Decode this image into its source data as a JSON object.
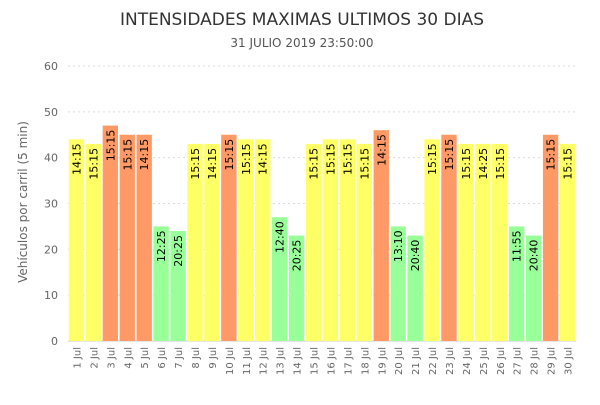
{
  "chart_data": {
    "type": "bar",
    "title": "INTENSIDADES MAXIMAS ULTIMOS 30 DIAS",
    "subtitle": "31 JULIO 2019 23:50:00",
    "ylabel": "Vehículos por carril (5 min)",
    "ylim": [
      0,
      60
    ],
    "yticks": [
      0,
      10,
      20,
      30,
      40,
      50,
      60
    ],
    "grid": true,
    "categories": [
      "1 Jul",
      "2 Jul",
      "3 Jul",
      "4 Jul",
      "5 Jul",
      "6 Jul",
      "7 Jul",
      "8 Jul",
      "9 Jul",
      "10 Jul",
      "11 Jul",
      "12 Jul",
      "13 Jul",
      "14 Jul",
      "15 Jul",
      "16 Jul",
      "17 Jul",
      "18 Jul",
      "19 Jul",
      "20 Jul",
      "21 Jul",
      "22 Jul",
      "23 Jul",
      "24 Jul",
      "25 Jul",
      "26 Jul",
      "27 Jul",
      "28 Jul",
      "29 Jul",
      "30 Jul"
    ],
    "values": [
      44,
      43,
      47,
      45,
      45,
      25,
      24,
      43,
      43,
      45,
      44,
      44,
      27,
      23,
      43,
      44,
      44,
      43,
      46,
      25,
      23,
      44,
      45,
      43,
      43,
      43,
      25,
      23,
      45,
      43
    ],
    "labels": [
      "14:15",
      "15:15",
      "15:15",
      "15:15",
      "14:15",
      "12:25",
      "20:25",
      "15:15",
      "14:15",
      "15:15",
      "15:15",
      "14:15",
      "12:40",
      "20:25",
      "15:15",
      "15:15",
      "15:15",
      "15:15",
      "14:15",
      "13:10",
      "20:40",
      "15:15",
      "15:15",
      "15:15",
      "14:25",
      "15:15",
      "11:55",
      "20:40",
      "15:15",
      "15:15"
    ],
    "levels": [
      "yellow",
      "yellow",
      "orange",
      "orange",
      "orange",
      "green",
      "green",
      "yellow",
      "yellow",
      "orange",
      "yellow",
      "yellow",
      "green",
      "green",
      "yellow",
      "yellow",
      "yellow",
      "yellow",
      "orange",
      "green",
      "green",
      "yellow",
      "orange",
      "yellow",
      "yellow",
      "yellow",
      "green",
      "green",
      "orange",
      "yellow"
    ],
    "colors": {
      "yellow": "#ffff66",
      "orange": "#ff9966",
      "green": "#99ff99",
      "grid": "#dddddd",
      "axis_text": "#666666",
      "title": "#333333"
    }
  }
}
